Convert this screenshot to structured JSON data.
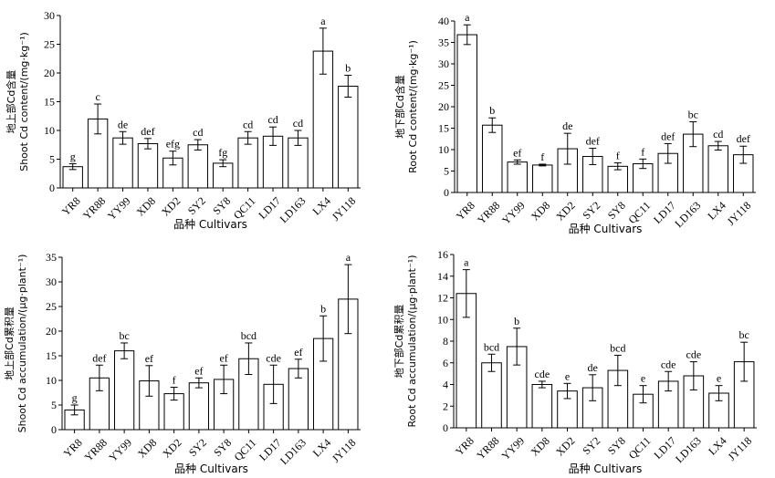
{
  "chart_data": [
    {
      "type": "bar",
      "ylabel_line1": "地上部Cd含量",
      "ylabel_line2": "Shoot Cd content/(mg·kg⁻¹)",
      "xlabel": "品种 Cultivars",
      "categories": [
        "YR8",
        "YR88",
        "YY99",
        "XD8",
        "XD2",
        "SY2",
        "SY8",
        "QC11",
        "LD17",
        "LD163",
        "LX4",
        "JY118"
      ],
      "values": [
        3.7,
        12.0,
        8.7,
        7.7,
        5.2,
        7.5,
        4.3,
        8.7,
        9.0,
        8.7,
        23.8,
        17.7
      ],
      "errors": [
        0.5,
        2.6,
        1.1,
        0.9,
        1.2,
        0.9,
        0.6,
        1.1,
        1.6,
        1.3,
        4.0,
        1.9
      ],
      "labels": [
        "g",
        "c",
        "de",
        "def",
        "efg",
        "cd",
        "fg",
        "cd",
        "cd",
        "cd",
        "a",
        "b"
      ],
      "ylim": [
        0,
        30
      ],
      "yticks": [
        0,
        5,
        10,
        15,
        20,
        25,
        30
      ]
    },
    {
      "type": "bar",
      "ylabel_line1": "地下部Cd含量",
      "ylabel_line2": "Root Cd content/(mg·kg⁻¹)",
      "xlabel": "品种 Cultivars",
      "categories": [
        "YR8",
        "YR88",
        "YY99",
        "XD8",
        "XD2",
        "SY2",
        "SY8",
        "QC11",
        "LD17",
        "LD163",
        "LX4",
        "JY118"
      ],
      "values": [
        36.8,
        15.7,
        7.1,
        6.4,
        10.2,
        8.4,
        6.1,
        6.7,
        9.1,
        13.6,
        10.9,
        8.8
      ],
      "errors": [
        2.3,
        1.7,
        0.5,
        0.2,
        3.6,
        1.9,
        0.8,
        1.1,
        2.3,
        2.9,
        1.0,
        2.0
      ],
      "labels": [
        "a",
        "b",
        "ef",
        "f",
        "de",
        "def",
        "f",
        "f",
        "def",
        "bc",
        "cd",
        "def"
      ],
      "ylim": [
        0,
        40
      ],
      "yticks": [
        0,
        5,
        10,
        15,
        20,
        25,
        30,
        35,
        40
      ]
    },
    {
      "type": "bar",
      "ylabel_line1": "地上部Cd累积量",
      "ylabel_line2": "Shoot Cd accumulation/(μg·plant⁻¹)",
      "xlabel": "品种 Cultivars",
      "categories": [
        "YR8",
        "YR88",
        "YY99",
        "XD8",
        "XD2",
        "SY2",
        "SY8",
        "QC11",
        "LD17",
        "LD163",
        "LX4",
        "JY118"
      ],
      "values": [
        4.0,
        10.5,
        16.0,
        9.9,
        7.3,
        9.5,
        10.2,
        14.4,
        9.2,
        12.4,
        18.5,
        26.5
      ],
      "errors": [
        1.0,
        2.6,
        1.6,
        3.1,
        1.3,
        1.0,
        2.9,
        3.2,
        3.9,
        1.9,
        4.6,
        7.0
      ],
      "labels": [
        "g",
        "def",
        "bc",
        "ef",
        "f",
        "ef",
        "ef",
        "bcd",
        "cde",
        "ef",
        "b",
        "a"
      ],
      "ylim": [
        0,
        35
      ],
      "yticks": [
        0,
        5,
        10,
        15,
        20,
        25,
        30,
        35
      ]
    },
    {
      "type": "bar",
      "ylabel_line1": "地下部Cd累积量",
      "ylabel_line2": "Root Cd accumulation/(μg·plant⁻¹)",
      "xlabel": "品种 Cultivars",
      "categories": [
        "YR8",
        "YR88",
        "YY99",
        "XD8",
        "XD2",
        "SY2",
        "SY8",
        "QC11",
        "LD17",
        "LD163",
        "LX4",
        "JY118"
      ],
      "values": [
        12.4,
        6.0,
        7.5,
        4.0,
        3.4,
        3.7,
        5.3,
        3.1,
        4.3,
        4.8,
        3.2,
        6.1
      ],
      "errors": [
        2.2,
        0.8,
        1.7,
        0.3,
        0.7,
        1.2,
        1.4,
        0.8,
        0.9,
        1.3,
        0.7,
        1.8
      ],
      "labels": [
        "a",
        "bcd",
        "b",
        "cde",
        "e",
        "de",
        "bcd",
        "e",
        "cde",
        "cde",
        "e",
        "bc"
      ],
      "ylim": [
        0,
        16
      ],
      "yticks": [
        0,
        2,
        4,
        6,
        8,
        10,
        12,
        14,
        16
      ]
    }
  ]
}
